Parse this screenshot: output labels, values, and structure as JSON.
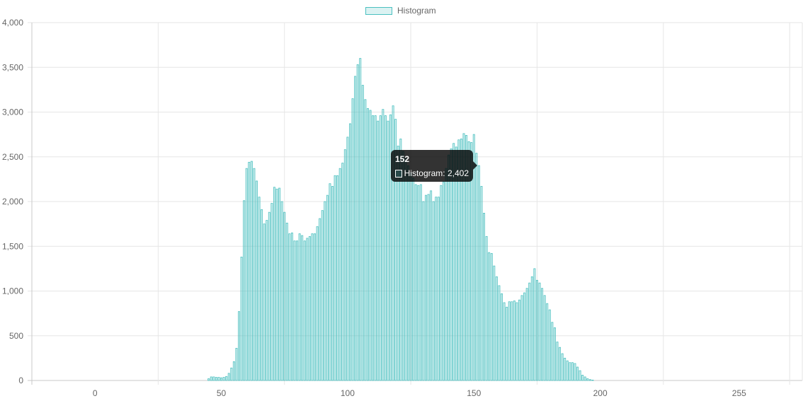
{
  "colors": {
    "bar_fill": "rgba(75,192,192,0.2)",
    "bar_stroke": "#4bc0c0",
    "grid": "#e6e6e6",
    "tick_text": "#666666"
  },
  "legend": {
    "label": "Histogram"
  },
  "tooltip": {
    "title": "152",
    "series": "Histogram",
    "value_text": "2,402"
  },
  "chart_data": {
    "type": "bar",
    "title": "",
    "xlabel": "",
    "ylabel": "",
    "legend_position": "top",
    "grid": true,
    "x_tick_labels": [
      "0",
      "50",
      "100",
      "150",
      "200",
      "255"
    ],
    "y_tick_labels": [
      "0",
      "500",
      "1,000",
      "1,500",
      "2,000",
      "2,500",
      "3,000",
      "3,500",
      "4,000"
    ],
    "xlim": [
      -25,
      280
    ],
    "ylim": [
      0,
      4000
    ],
    "series": [
      {
        "name": "Histogram",
        "x_start": 0,
        "values": [
          0,
          0,
          0,
          0,
          0,
          0,
          0,
          0,
          0,
          0,
          0,
          0,
          0,
          0,
          0,
          0,
          0,
          0,
          0,
          0,
          0,
          0,
          0,
          0,
          0,
          0,
          0,
          0,
          0,
          0,
          0,
          0,
          0,
          0,
          0,
          0,
          0,
          0,
          0,
          0,
          0,
          0,
          0,
          0,
          0,
          20,
          40,
          40,
          35,
          35,
          30,
          35,
          45,
          80,
          140,
          210,
          360,
          770,
          1380,
          2010,
          2370,
          2440,
          2450,
          2370,
          2230,
          2050,
          1910,
          1750,
          1790,
          1880,
          1980,
          2160,
          2140,
          2150,
          2000,
          1880,
          1760,
          1640,
          1650,
          1560,
          1560,
          1640,
          1620,
          1560,
          1590,
          1610,
          1640,
          1640,
          1720,
          1810,
          1900,
          2000,
          2070,
          2200,
          2170,
          2290,
          2290,
          2370,
          2430,
          2580,
          2720,
          2870,
          3150,
          3400,
          3530,
          3600,
          3300,
          3140,
          3040,
          3020,
          2960,
          2960,
          2900,
          2960,
          3030,
          2960,
          2900,
          2970,
          3070,
          2920,
          2620,
          2700,
          2560,
          2480,
          2400,
          2320,
          2260,
          2190,
          2180,
          2190,
          2000,
          2070,
          2080,
          2120,
          2000,
          2050,
          2050,
          2180,
          2220,
          2370,
          2520,
          2590,
          2650,
          2610,
          2690,
          2700,
          2760,
          2740,
          2670,
          2660,
          2750,
          2540,
          2402,
          2170,
          1870,
          1610,
          1430,
          1420,
          1280,
          1160,
          1060,
          970,
          870,
          820,
          880,
          880,
          890,
          870,
          900,
          950,
          980,
          1030,
          1090,
          1160,
          1250,
          1120,
          1090,
          1030,
          950,
          860,
          790,
          650,
          590,
          430,
          370,
          300,
          250,
          220,
          200,
          200,
          190,
          150,
          110,
          60,
          40,
          20,
          10,
          5,
          0,
          0,
          0,
          0,
          0,
          0,
          0,
          0,
          0,
          0,
          0,
          0,
          0,
          0,
          0,
          0,
          0,
          0,
          0,
          0,
          0,
          0,
          0,
          0,
          0,
          0,
          0,
          0,
          0,
          0,
          0,
          0,
          0,
          0,
          0,
          0,
          0,
          0,
          0,
          0,
          0,
          0,
          0,
          0,
          0,
          0,
          0,
          0,
          0,
          0,
          0,
          0,
          0,
          0,
          0,
          0,
          0,
          0,
          0,
          0,
          0,
          0,
          0,
          0,
          0,
          0,
          0,
          0,
          0,
          0,
          0,
          0
        ]
      }
    ]
  }
}
